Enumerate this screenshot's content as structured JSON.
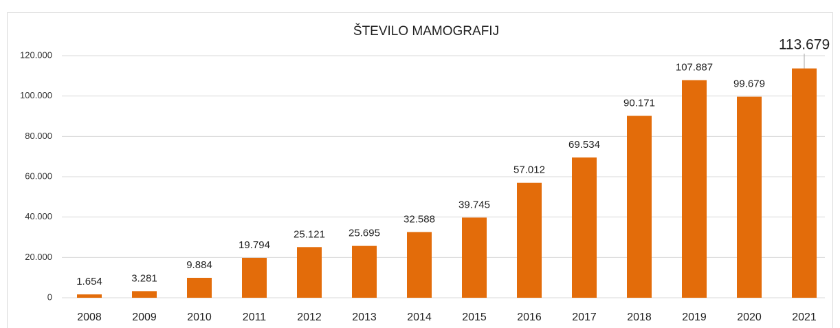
{
  "chart_data": {
    "type": "bar",
    "title": "ŠTEVILO MAMOGRAFIJ",
    "categories": [
      "2008",
      "2009",
      "2010",
      "2011",
      "2012",
      "2013",
      "2014",
      "2015",
      "2016",
      "2017",
      "2018",
      "2019",
      "2020",
      "2021"
    ],
    "values": [
      1654,
      3281,
      9884,
      19794,
      25121,
      25695,
      32588,
      39745,
      57012,
      69534,
      90171,
      107887,
      99679,
      113679
    ],
    "value_labels": [
      "1.654",
      "3.281",
      "9.884",
      "19.794",
      "25.121",
      "25.695",
      "32.588",
      "39.745",
      "57.012",
      "69.534",
      "90.171",
      "107.887",
      "99.679",
      "113.679"
    ],
    "color": "#e36c0a",
    "ylim": [
      0,
      120000
    ],
    "yticks": [
      0,
      {
        "value": 20000,
        "label": "20.000"
      },
      {
        "value": 40000,
        "label": "40.000"
      },
      {
        "value": 60000,
        "label": "60.000"
      },
      {
        "value": 80000,
        "label": "80.000"
      },
      {
        "value": 100000,
        "label": "100.000"
      },
      {
        "value": 120000,
        "label": "120.000"
      }
    ],
    "grid": true
  }
}
